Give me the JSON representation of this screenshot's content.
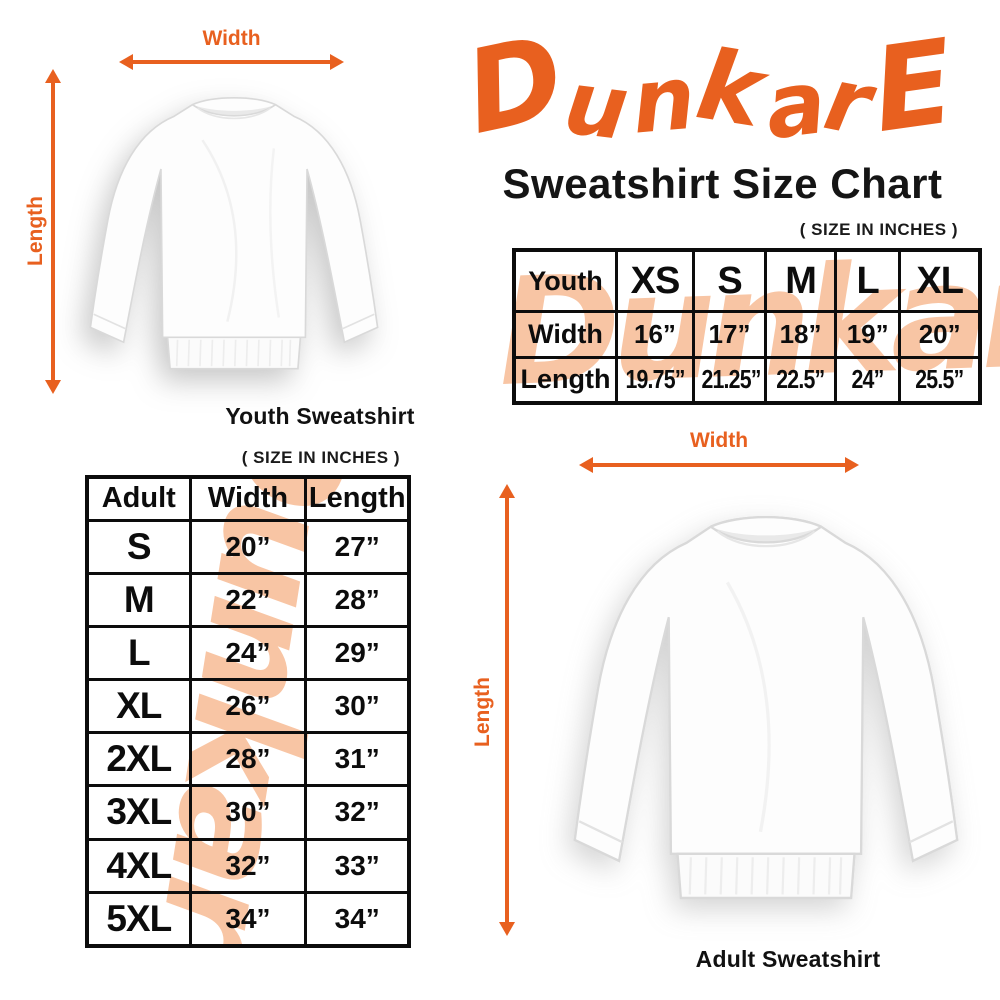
{
  "accent_color": "#e8601f",
  "watermark_color": "#f8c5a4",
  "brand": {
    "logo_text": "DunkarE",
    "title": "Sweatshirt Size Chart"
  },
  "youth_section": {
    "size_note": "( SIZE IN INCHES )",
    "watermark_text": "Dunkare",
    "figure": {
      "width_label": "Width",
      "length_label": "Length",
      "caption": "Youth Sweatshirt"
    },
    "table": {
      "header": {
        "c0": "Youth",
        "c1": "XS",
        "c2": "S",
        "c3": "M",
        "c4": "L",
        "c5": "XL"
      },
      "width_row": {
        "label": "Width",
        "v1": "16”",
        "v2": "17”",
        "v3": "18”",
        "v4": "19”",
        "v5": "20”"
      },
      "length_row": {
        "label": "Length",
        "v1": "19.75”",
        "v2": "21.25”",
        "v3": "22.5”",
        "v4": "24”",
        "v5": "25.5”"
      }
    }
  },
  "adult_section": {
    "size_note": "( SIZE IN INCHES )",
    "watermark_text": "Dunkare",
    "figure": {
      "width_label": "Width",
      "length_label": "Length",
      "caption": "Adult Sweatshirt"
    },
    "table": {
      "header": {
        "c0": "Adult",
        "c1": "Width",
        "c2": "Length"
      },
      "rows": [
        {
          "size": "S",
          "width": "20”",
          "length": "27”"
        },
        {
          "size": "M",
          "width": "22”",
          "length": "28”"
        },
        {
          "size": "L",
          "width": "24”",
          "length": "29”"
        },
        {
          "size": "XL",
          "width": "26”",
          "length": "30”"
        },
        {
          "size": "2XL",
          "width": "28”",
          "length": "31”"
        },
        {
          "size": "3XL",
          "width": "30”",
          "length": "32”"
        },
        {
          "size": "4XL",
          "width": "32”",
          "length": "33”"
        },
        {
          "size": "5XL",
          "width": "34”",
          "length": "34”"
        }
      ]
    }
  },
  "chart_data": [
    {
      "type": "table",
      "title": "Youth Sweatshirt Size Chart (size in inches)",
      "columns": [
        "Youth",
        "XS",
        "S",
        "M",
        "L",
        "XL"
      ],
      "rows": [
        [
          "Width",
          16,
          17,
          18,
          19,
          20
        ],
        [
          "Length",
          19.75,
          21.25,
          22.5,
          24,
          25.5
        ]
      ]
    },
    {
      "type": "table",
      "title": "Adult Sweatshirt Size Chart (size in inches)",
      "columns": [
        "Adult",
        "Width",
        "Length"
      ],
      "rows": [
        [
          "S",
          20,
          27
        ],
        [
          "M",
          22,
          28
        ],
        [
          "L",
          24,
          29
        ],
        [
          "XL",
          26,
          30
        ],
        [
          "2XL",
          28,
          31
        ],
        [
          "3XL",
          30,
          32
        ],
        [
          "4XL",
          32,
          33
        ],
        [
          "5XL",
          34,
          34
        ]
      ]
    }
  ]
}
